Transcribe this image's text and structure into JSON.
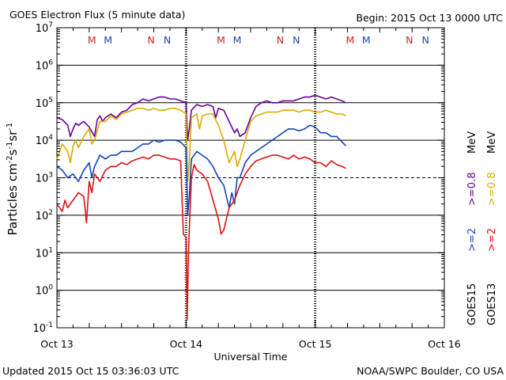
{
  "chart_data": {
    "type": "line",
    "title": "GOES Electron Flux (5 minute data)",
    "begin_label": "Begin: 2015 Oct 13 0000 UTC",
    "ylabel_main": "Particles cm",
    "ylabel_sup1": "-2",
    "ylabel_mid1": "s",
    "ylabel_sup2": "-1",
    "ylabel_mid2": "sr",
    "ylabel_sup3": "-1",
    "xlabel": "Universal Time",
    "updated": "Updated 2015 Oct 15 03:36:03 UTC",
    "credit": "NOAA/SWPC Boulder, CO USA",
    "x_ticks": [
      "Oct 13",
      "Oct 14",
      "Oct 15",
      "Oct 16"
    ],
    "xlim_hours": [
      0,
      72
    ],
    "ylim_log10": [
      -1,
      7
    ],
    "y_tick_exponents": [
      7,
      6,
      5,
      4,
      3,
      2,
      1,
      0,
      -1
    ],
    "y_tick_base": "10",
    "log_scale": true,
    "threshold": 1000,
    "right_label_goes15": "GOES15",
    "right_label_goes13": "GOES13",
    "right_label_ge2": ">=2",
    "right_label_ge08": ">=0.8",
    "right_label_mev": "MeV",
    "mn_markers": [
      {
        "label": "M",
        "hour": 6.5,
        "color": "#cc2222"
      },
      {
        "label": "M",
        "hour": 9.5,
        "color": "#2244aa"
      },
      {
        "label": "N",
        "hour": 17.5,
        "color": "#cc2222"
      },
      {
        "label": "N",
        "hour": 20.5,
        "color": "#2244aa"
      },
      {
        "label": "M",
        "hour": 30.5,
        "color": "#cc2222"
      },
      {
        "label": "M",
        "hour": 33.5,
        "color": "#2244aa"
      },
      {
        "label": "N",
        "hour": 41.5,
        "color": "#cc2222"
      },
      {
        "label": "N",
        "hour": 44.5,
        "color": "#2244aa"
      },
      {
        "label": "M",
        "hour": 54.5,
        "color": "#cc2222"
      },
      {
        "label": "M",
        "hour": 57.5,
        "color": "#2244aa"
      },
      {
        "label": "N",
        "hour": 65.5,
        "color": "#cc2222"
      },
      {
        "label": "N",
        "hour": 68.5,
        "color": "#2244aa"
      }
    ],
    "series": [
      {
        "color": "#660099",
        "x": [
          0,
          1,
          2,
          2.5,
          3,
          3.5,
          4,
          5,
          6,
          7,
          7.5,
          8,
          8.5,
          9,
          10,
          11,
          12,
          13,
          14,
          15,
          16,
          17,
          18,
          19,
          20,
          21,
          22,
          23,
          24,
          24.3,
          24.6,
          25,
          26,
          27,
          28,
          29,
          29.5,
          30,
          31,
          32,
          33,
          33.5,
          34,
          35,
          36,
          37,
          38,
          39,
          40,
          41,
          42,
          43,
          44,
          45,
          46,
          47,
          48,
          49,
          50,
          51,
          52,
          53,
          53.7
        ],
        "y": [
          4.6,
          4.55,
          4.4,
          4.1,
          4.3,
          4.45,
          4.4,
          4.5,
          4.35,
          4.1,
          4.55,
          4.65,
          4.5,
          4.6,
          4.7,
          4.6,
          4.75,
          4.8,
          4.95,
          5.0,
          5.1,
          5.05,
          5.1,
          5.15,
          5.15,
          5.1,
          5.1,
          5.05,
          5.0,
          4.0,
          4.3,
          4.8,
          4.95,
          4.9,
          4.95,
          4.9,
          4.6,
          4.85,
          4.8,
          4.5,
          4.2,
          4.3,
          4.1,
          4.2,
          4.6,
          4.9,
          5.0,
          5.05,
          5.0,
          5.0,
          5.05,
          5.05,
          5.05,
          5.1,
          5.15,
          5.15,
          5.2,
          5.15,
          5.1,
          5.15,
          5.1,
          5.05,
          5.0
        ]
      },
      {
        "color": "#ddaa00",
        "x": [
          0,
          1,
          2,
          2.5,
          3,
          3.5,
          4,
          5,
          6,
          6.5,
          7,
          8,
          9,
          10,
          11,
          12,
          13,
          14,
          15,
          16,
          17,
          18,
          19,
          20,
          21,
          22,
          23,
          24,
          24.3,
          24.6,
          25,
          26,
          26.5,
          27,
          28,
          29,
          30,
          31,
          32,
          33,
          33.5,
          34,
          35,
          36,
          37,
          38,
          39,
          40,
          41,
          42,
          43,
          44,
          45,
          46,
          47,
          48,
          49,
          50,
          51,
          52,
          53,
          53.7
        ],
        "y": [
          3.5,
          3.9,
          3.7,
          3.4,
          3.85,
          4.0,
          3.8,
          4.1,
          4.3,
          3.9,
          4.0,
          4.5,
          4.5,
          4.65,
          4.55,
          4.7,
          4.75,
          4.8,
          4.85,
          4.85,
          4.8,
          4.85,
          4.8,
          4.8,
          4.85,
          4.85,
          4.8,
          4.7,
          2.9,
          3.4,
          4.6,
          4.7,
          4.3,
          4.65,
          4.7,
          4.7,
          4.4,
          4.0,
          3.4,
          3.7,
          3.3,
          3.5,
          4.0,
          4.5,
          4.65,
          4.7,
          4.75,
          4.75,
          4.75,
          4.8,
          4.8,
          4.8,
          4.75,
          4.8,
          4.8,
          4.75,
          4.75,
          4.8,
          4.75,
          4.7,
          4.7,
          4.65
        ]
      },
      {
        "color": "#1144bb",
        "x": [
          0,
          1,
          2,
          3,
          4,
          5,
          6,
          6.5,
          7,
          8,
          9,
          10,
          11,
          12,
          13,
          14,
          15,
          16,
          17,
          18,
          19,
          20,
          21,
          22,
          23,
          24,
          24.3,
          24.6,
          25,
          26,
          27,
          28,
          29,
          30,
          31,
          32,
          32.5,
          33,
          33.5,
          34,
          35,
          36,
          37,
          38,
          39,
          40,
          41,
          42,
          43,
          44,
          45,
          46,
          47,
          48,
          49,
          50,
          51,
          52,
          53,
          53.7
        ],
        "y": [
          3.3,
          3.2,
          3.0,
          3.1,
          2.9,
          3.2,
          3.4,
          3.0,
          3.3,
          3.6,
          3.5,
          3.6,
          3.6,
          3.7,
          3.7,
          3.7,
          3.8,
          3.9,
          3.9,
          4.0,
          3.95,
          4.0,
          4.0,
          4.0,
          3.95,
          3.8,
          2.0,
          2.5,
          3.5,
          3.7,
          3.6,
          3.5,
          3.3,
          3.0,
          2.8,
          2.2,
          2.6,
          2.3,
          3.0,
          3.0,
          3.4,
          3.6,
          3.7,
          3.8,
          3.9,
          4.0,
          4.1,
          4.2,
          4.3,
          4.3,
          4.25,
          4.3,
          4.4,
          4.35,
          4.2,
          4.2,
          4.1,
          4.1,
          3.95,
          3.85
        ]
      },
      {
        "color": "#dd1111",
        "x": [
          0,
          1,
          1.5,
          2,
          3,
          4,
          5,
          5.5,
          6,
          6.5,
          7,
          8,
          9,
          10,
          11,
          12,
          13,
          14,
          15,
          16,
          17,
          18,
          19,
          20,
          21,
          22,
          23,
          23.5,
          24,
          24.2,
          24.4,
          24.6,
          25,
          25.5,
          26,
          27,
          28,
          29,
          30,
          30.5,
          31,
          32,
          33,
          34,
          35,
          36,
          37,
          38,
          39,
          40,
          41,
          42,
          43,
          44,
          45,
          46,
          47,
          48,
          49,
          50,
          51,
          52,
          53,
          53.7
        ],
        "y": [
          2.3,
          2.1,
          2.4,
          2.2,
          2.4,
          2.6,
          2.5,
          1.8,
          2.9,
          2.6,
          3.1,
          2.9,
          3.2,
          3.3,
          3.3,
          3.4,
          3.35,
          3.45,
          3.5,
          3.55,
          3.5,
          3.6,
          3.6,
          3.55,
          3.5,
          3.5,
          3.45,
          1.5,
          1.4,
          -0.8,
          0.7,
          1.6,
          3.0,
          3.35,
          3.2,
          3.1,
          2.9,
          2.4,
          1.9,
          1.5,
          1.6,
          2.2,
          2.4,
          2.8,
          3.1,
          3.3,
          3.45,
          3.5,
          3.55,
          3.6,
          3.6,
          3.55,
          3.5,
          3.6,
          3.5,
          3.55,
          3.5,
          3.4,
          3.4,
          3.3,
          3.45,
          3.35,
          3.3,
          3.25
        ]
      }
    ]
  }
}
